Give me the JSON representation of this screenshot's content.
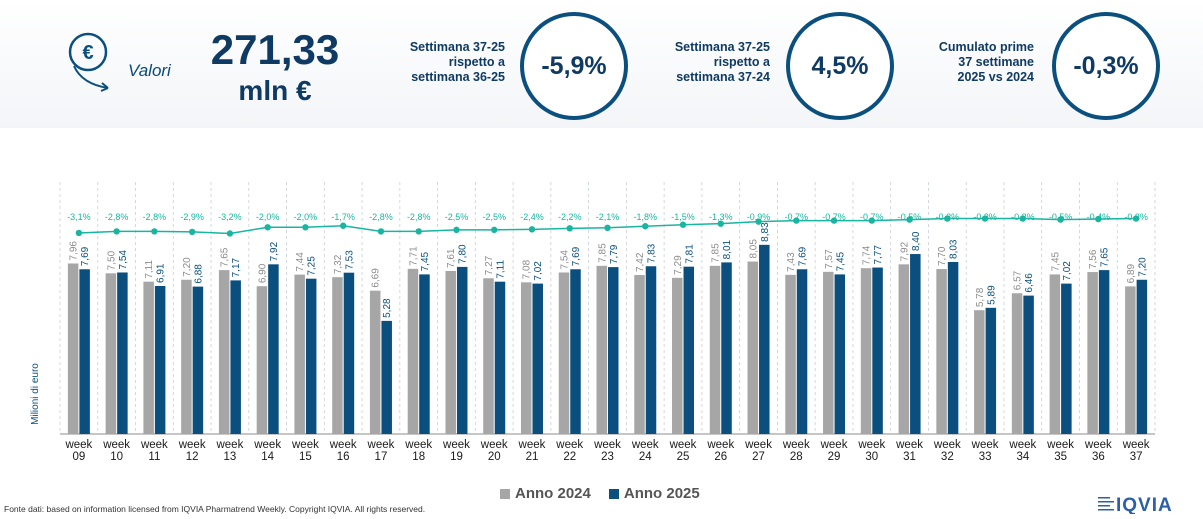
{
  "header": {
    "label": "Valori",
    "value": "271,33",
    "unit": "mln €"
  },
  "kpis": [
    {
      "text": "Settimana 37-25\nrispetto a\nsettimana 36-25",
      "value": "-5,9%"
    },
    {
      "text": "Settimana 37-25\nrispetto a\nsettimana 37-24",
      "value": "4,5%"
    },
    {
      "text": "Cumulato prime\n37 settimane\n2025 vs 2024",
      "value": "-0,3%"
    }
  ],
  "colors": {
    "y2024": "#a6a6a6",
    "y2025": "#0b4f7f",
    "line": "#18b5a0",
    "accent": "#0e3a63"
  },
  "chart_data": {
    "type": "bar",
    "ylabel": "Milioni di euro",
    "categories": [
      "week\n09",
      "week\n10",
      "week\n11",
      "week\n12",
      "week\n13",
      "week\n14",
      "week\n15",
      "week\n16",
      "week\n17",
      "week\n18",
      "week\n19",
      "week\n20",
      "week\n21",
      "week\n22",
      "week\n23",
      "week\n24",
      "week\n25",
      "week\n26",
      "week\n27",
      "week\n28",
      "week\n29",
      "week\n30",
      "week\n31",
      "week\n32",
      "week\n33",
      "week\n34",
      "week\n35",
      "week\n36",
      "week\n37"
    ],
    "series": [
      {
        "name": "Anno 2024",
        "values": [
          7.96,
          7.5,
          7.11,
          7.2,
          7.65,
          6.9,
          7.44,
          7.32,
          6.69,
          7.71,
          7.61,
          7.27,
          7.08,
          7.54,
          7.85,
          7.42,
          7.29,
          7.85,
          8.05,
          7.43,
          7.57,
          7.74,
          7.92,
          7.7,
          5.78,
          6.57,
          7.45,
          7.56,
          6.89
        ],
        "labels": [
          "7,96",
          "7,50",
          "7,11",
          "7,20",
          "7,65",
          "6,90",
          "7,44",
          "7,32",
          "6,69",
          "7,71",
          "7,61",
          "7,27",
          "7,08",
          "7,54",
          "7,85",
          "7,42",
          "7,29",
          "7,85",
          "8,05",
          "7,43",
          "7,57",
          "7,74",
          "7,92",
          "7,70",
          "5,78",
          "6,57",
          "7,45",
          "7,56",
          "6,89"
        ]
      },
      {
        "name": "Anno 2025",
        "values": [
          7.69,
          7.54,
          6.91,
          6.88,
          7.17,
          7.92,
          7.25,
          7.53,
          5.28,
          7.45,
          7.8,
          7.11,
          7.02,
          7.69,
          7.79,
          7.83,
          7.81,
          8.01,
          8.83,
          7.69,
          7.45,
          7.77,
          8.4,
          8.03,
          5.89,
          6.46,
          7.02,
          7.65,
          7.2
        ],
        "labels": [
          "7,69",
          "7,54",
          "6,91",
          "6,88",
          "7,17",
          "7,92",
          "7,25",
          "7,53",
          "5,28",
          "7,45",
          "7,80",
          "7,11",
          "7,02",
          "7,69",
          "7,79",
          "7,83",
          "7,81",
          "8,01",
          "8,83",
          "7,69",
          "7,45",
          "7,77",
          "8,40",
          "8,03",
          "5,89",
          "6,46",
          "7,02",
          "7,65",
          "7,20"
        ]
      }
    ],
    "cumulative_change": {
      "values": [
        -3.1,
        -2.8,
        -2.8,
        -2.9,
        -3.2,
        -2.0,
        -2.0,
        -1.7,
        -2.8,
        -2.8,
        -2.5,
        -2.5,
        -2.4,
        -2.2,
        -2.1,
        -1.8,
        -1.5,
        -1.3,
        -0.9,
        -0.7,
        -0.7,
        -0.7,
        -0.5,
        -0.3,
        -0.3,
        -0.3,
        -0.5,
        -0.4,
        -0.3
      ],
      "labels": [
        "-3,1%",
        "-2,8%",
        "-2,8%",
        "-2,9%",
        "-3,2%",
        "-2,0%",
        "-2,0%",
        "-1,7%",
        "-2,8%",
        "-2,8%",
        "-2,5%",
        "-2,5%",
        "-2,4%",
        "-2,2%",
        "-2,1%",
        "-1,8%",
        "-1,5%",
        "-1,3%",
        "-0,9%",
        "-0,7%",
        "-0,7%",
        "-0,7%",
        "-0,5%",
        "-0,3%",
        "-0,3%",
        "-0,3%",
        "-0,5%",
        "-0,4%",
        "-0,3%"
      ]
    },
    "ylim": [
      0,
      9.5
    ],
    "legend": "bottom"
  },
  "footer": {
    "source": "Fonte dati: based on information licensed from IQVIA Pharmatrend Weekly. Copyright IQVIA. All rights reserved.",
    "logo": "IQVIA"
  }
}
